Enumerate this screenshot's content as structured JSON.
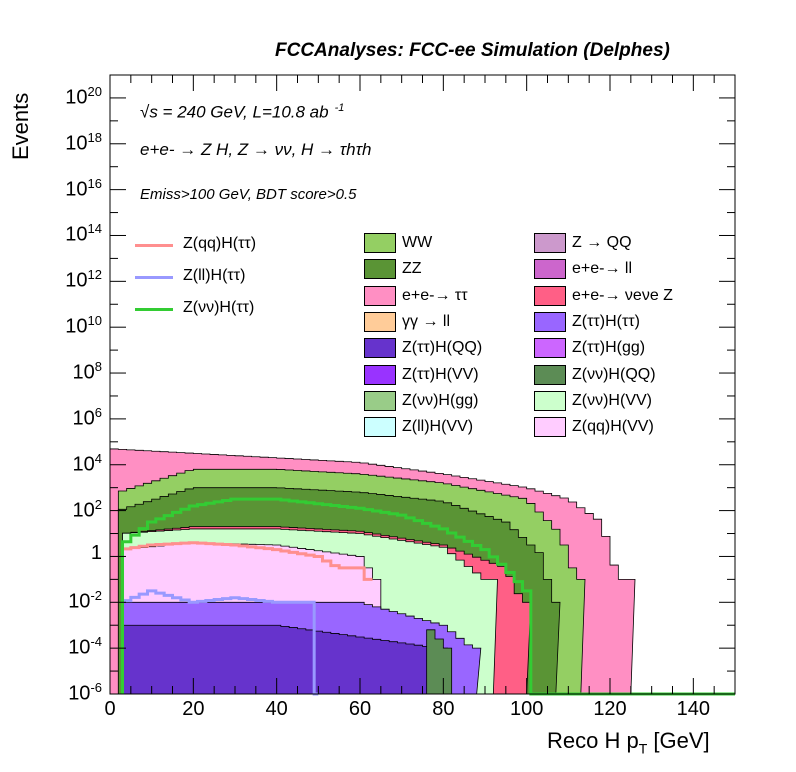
{
  "header": "FCCAnalyses: FCC-ee Simulation (Delphes)",
  "annotations": {
    "energy": "√s = 240 GeV, L=10.8 ab",
    "energy_sup": "-1",
    "process": "e+e- → Z H, Z → νν, H → τhτh",
    "cuts": "Emiss>100 GeV, BDT score>0.5"
  },
  "chart_data": {
    "type": "bar",
    "title": "",
    "xlabel": "Reco H pT [GeV]",
    "ylabel": "Events",
    "xlim": [
      0,
      150
    ],
    "ylim_log10": [
      -6,
      21
    ],
    "log_y": true,
    "x_ticks": [
      "0",
      "20",
      "40",
      "60",
      "80",
      "100",
      "120",
      "140"
    ],
    "y_ticks": [
      "10-6",
      "10-4",
      "10-2",
      "1",
      "102",
      "104",
      "106",
      "108",
      "1010",
      "1012",
      "1014",
      "1016",
      "1018",
      "1020"
    ],
    "stack_note": "stacked background histograms; values are approximate log10 of stacked top",
    "stack": [
      {
        "name": "e+e-→ ττ",
        "color": "#ff8fc3",
        "end": 125,
        "log10_levels": [
          [
            0,
            4.7
          ],
          [
            20,
            4.5
          ],
          [
            40,
            4.3
          ],
          [
            60,
            4.1
          ],
          [
            80,
            3.6
          ],
          [
            100,
            3.0
          ],
          [
            110,
            2.5
          ],
          [
            118,
            1.5
          ],
          [
            122,
            -1
          ]
        ]
      },
      {
        "name": "WW",
        "color": "#94cf63",
        "end": 113,
        "log10_levels": [
          [
            2,
            2.8
          ],
          [
            20,
            3.8
          ],
          [
            40,
            3.8
          ],
          [
            60,
            3.6
          ],
          [
            80,
            3.2
          ],
          [
            100,
            2.5
          ],
          [
            108,
            1.0
          ],
          [
            112,
            -1
          ]
        ]
      },
      {
        "name": "ZZ",
        "color": "#5a9435",
        "end": 107,
        "log10_levels": [
          [
            2,
            2.0
          ],
          [
            20,
            3.0
          ],
          [
            40,
            3.0
          ],
          [
            60,
            2.8
          ],
          [
            80,
            2.4
          ],
          [
            95,
            1.5
          ],
          [
            104,
            0
          ],
          [
            106,
            -2
          ]
        ]
      },
      {
        "name": "e+e-→ νeνe Z",
        "color": "#ff5f86",
        "end": 100,
        "log10_levels": [
          [
            3,
            1.0
          ],
          [
            20,
            1.3
          ],
          [
            40,
            1.3
          ],
          [
            60,
            1.1
          ],
          [
            80,
            0.5
          ],
          [
            95,
            -0.5
          ],
          [
            99,
            -2
          ]
        ]
      },
      {
        "name": "Z(νν)H(VV)",
        "color": "#ccffcc",
        "end": 92,
        "log10_levels": [
          [
            3,
            1.0
          ],
          [
            20,
            1.2
          ],
          [
            40,
            1.2
          ],
          [
            60,
            1.0
          ],
          [
            80,
            0.4
          ],
          [
            90,
            -1
          ]
        ]
      },
      {
        "name": "Z(qq)H(VV)",
        "color": "#ffccff",
        "end": 65,
        "log10_levels": [
          [
            3,
            0.3
          ],
          [
            20,
            0.6
          ],
          [
            40,
            0.5
          ],
          [
            60,
            0.0
          ],
          [
            64,
            -1
          ]
        ]
      },
      {
        "name": "Z(ττ)H(ττ)",
        "color": "#9966ff",
        "end": 88,
        "log10_levels": [
          [
            3,
            -2
          ],
          [
            20,
            -2
          ],
          [
            40,
            -2
          ],
          [
            60,
            -2
          ],
          [
            80,
            -3
          ],
          [
            87,
            -4
          ]
        ]
      },
      {
        "name": "Z(ττ)H(QQ)",
        "color": "#6633cc",
        "end": 80,
        "log10_levels": [
          [
            3,
            -3
          ],
          [
            40,
            -3
          ],
          [
            79,
            -4
          ]
        ]
      },
      {
        "name": "Z(νν)H(QQ)",
        "color": "#5c8c55",
        "end": 82,
        "log10_levels": [
          [
            76,
            -3
          ],
          [
            81,
            -4
          ]
        ]
      }
    ],
    "series": [
      {
        "name": "Z(qq)H(ττ)",
        "color": "#ff8f8f",
        "points": [
          [
            3,
            0.3
          ],
          [
            10,
            0.5
          ],
          [
            20,
            0.6
          ],
          [
            30,
            0.5
          ],
          [
            40,
            0.3
          ],
          [
            50,
            0.0
          ],
          [
            55,
            -0.5
          ],
          [
            60,
            -0.5
          ],
          [
            62,
            -1
          ],
          [
            63,
            -6
          ]
        ]
      },
      {
        "name": "Z(ll)H(ττ)",
        "color": "#9999ff",
        "points": [
          [
            3,
            -2
          ],
          [
            10,
            -1.5
          ],
          [
            20,
            -2
          ],
          [
            30,
            -1.8
          ],
          [
            40,
            -2
          ],
          [
            48,
            -2
          ],
          [
            50,
            -6
          ]
        ]
      },
      {
        "name": "Z(νν)H(ττ)",
        "color": "#33cc33",
        "points": [
          [
            3,
            0.5
          ],
          [
            10,
            1.5
          ],
          [
            20,
            2.2
          ],
          [
            30,
            2.5
          ],
          [
            40,
            2.5
          ],
          [
            50,
            2.3
          ],
          [
            60,
            2.1
          ],
          [
            70,
            1.8
          ],
          [
            80,
            1.2
          ],
          [
            90,
            0.3
          ],
          [
            95,
            -0.5
          ],
          [
            100,
            -1.5
          ],
          [
            101,
            -6
          ],
          [
            150,
            -6
          ]
        ]
      }
    ]
  },
  "legend": {
    "lines": [
      {
        "label": "Z(qq)H(ττ)",
        "color": "#ff8f8f"
      },
      {
        "label": "Z(ll)H(ττ)",
        "color": "#9999ff"
      },
      {
        "label": "Z(νν)H(ττ)",
        "color": "#33cc33"
      }
    ],
    "col1": [
      {
        "label": "WW",
        "color": "#94cf63"
      },
      {
        "label": "ZZ",
        "color": "#5a9435"
      },
      {
        "label": "e+e-→ ττ",
        "color": "#ff8fc3"
      },
      {
        "label": "γγ → ll",
        "color": "#ffcc99"
      },
      {
        "label": "Z(ττ)H(QQ)",
        "color": "#6633cc"
      },
      {
        "label": "Z(ττ)H(VV)",
        "color": "#9933ff"
      },
      {
        "label": "Z(νν)H(gg)",
        "color": "#99cc88"
      },
      {
        "label": "Z(ll)H(VV)",
        "color": "#ccffff"
      }
    ],
    "col2": [
      {
        "label": "Z → QQ",
        "color": "#cc99cc"
      },
      {
        "label": "e+e-→ ll",
        "color": "#cc66cc"
      },
      {
        "label": "e+e-→ νeνe Z",
        "color": "#ff5f86"
      },
      {
        "label": "Z(ττ)H(ττ)",
        "color": "#9966ff"
      },
      {
        "label": "Z(ττ)H(gg)",
        "color": "#cc66ff"
      },
      {
        "label": "Z(νν)H(QQ)",
        "color": "#5c8c55"
      },
      {
        "label": "Z(νν)H(VV)",
        "color": "#ccffcc"
      },
      {
        "label": "Z(qq)H(VV)",
        "color": "#ffccff"
      }
    ]
  }
}
